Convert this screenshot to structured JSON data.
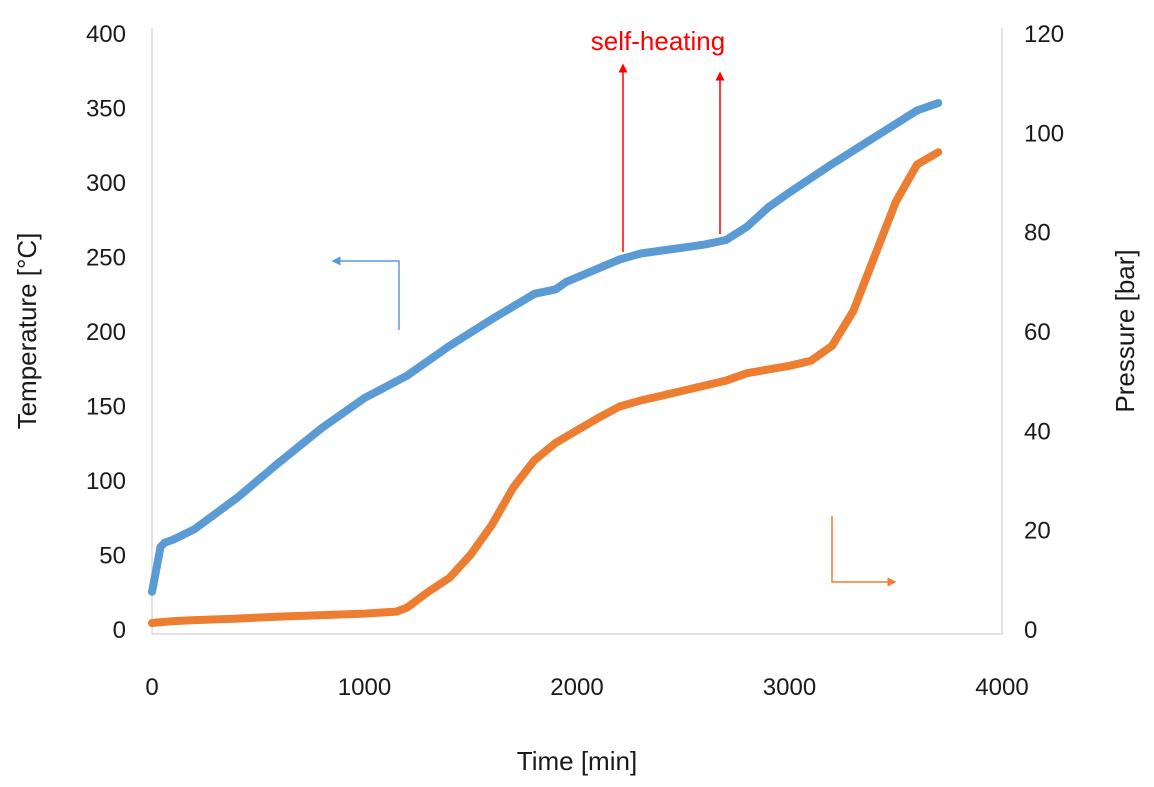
{
  "chart_data": {
    "type": "line",
    "title": "",
    "xlabel": "Time [min]",
    "ylabel_left": "Temperature [°C]",
    "ylabel_right": "Pressure [bar]",
    "xlim": [
      0,
      4000
    ],
    "ylim_left": [
      0,
      400
    ],
    "ylim_right": [
      0,
      120
    ],
    "xticks": [
      "0",
      "1000",
      "2000",
      "3000",
      "4000"
    ],
    "yticks_left": [
      "0",
      "50",
      "100",
      "150",
      "200",
      "250",
      "300",
      "350",
      "400"
    ],
    "yticks_right": [
      "0",
      "20",
      "40",
      "60",
      "80",
      "100",
      "120"
    ],
    "grid": false,
    "legend": "none",
    "colors": {
      "temperature": "#5b9bd5",
      "pressure": "#ed7d31",
      "annotation": "#ff0000",
      "axis": "#d9d9d9"
    },
    "series": [
      {
        "axis": "left",
        "color": "#5b9bd5",
        "x": [
          0,
          20,
          40,
          60,
          100,
          200,
          400,
          600,
          800,
          1000,
          1200,
          1400,
          1600,
          1800,
          1900,
          1950,
          2000,
          2100,
          2200,
          2300,
          2400,
          2500,
          2600,
          2700,
          2800,
          2900,
          3000,
          3200,
          3400,
          3600,
          3700
        ],
        "y": [
          25,
          40,
          55,
          58,
          60,
          67,
          88,
          112,
          135,
          155,
          170,
          190,
          208,
          225,
          228,
          233,
          236,
          242,
          248,
          252,
          254,
          256,
          258,
          261,
          270,
          283,
          293,
          312,
          330,
          348,
          353
        ]
      },
      {
        "axis": "right",
        "color": "#ed7d31",
        "x": [
          0,
          100,
          200,
          400,
          600,
          800,
          1000,
          1150,
          1200,
          1300,
          1400,
          1500,
          1600,
          1700,
          1800,
          1900,
          2000,
          2100,
          2200,
          2300,
          2400,
          2500,
          2600,
          2700,
          2800,
          3000,
          3100,
          3200,
          3300,
          3400,
          3500,
          3600,
          3700
        ],
        "y": [
          1.2,
          1.6,
          1.8,
          2.1,
          2.5,
          2.8,
          3.1,
          3.5,
          4.3,
          7.5,
          10.3,
          15,
          21,
          28.5,
          34,
          37.5,
          40,
          42.5,
          44.8,
          46,
          47,
          48,
          49,
          50,
          51.5,
          53,
          54,
          57,
          64,
          75,
          86,
          93.5,
          96
        ]
      }
    ],
    "annotations": [
      {
        "text": "self-heating",
        "arrow_x": [
          2220,
          2670
        ]
      }
    ]
  }
}
